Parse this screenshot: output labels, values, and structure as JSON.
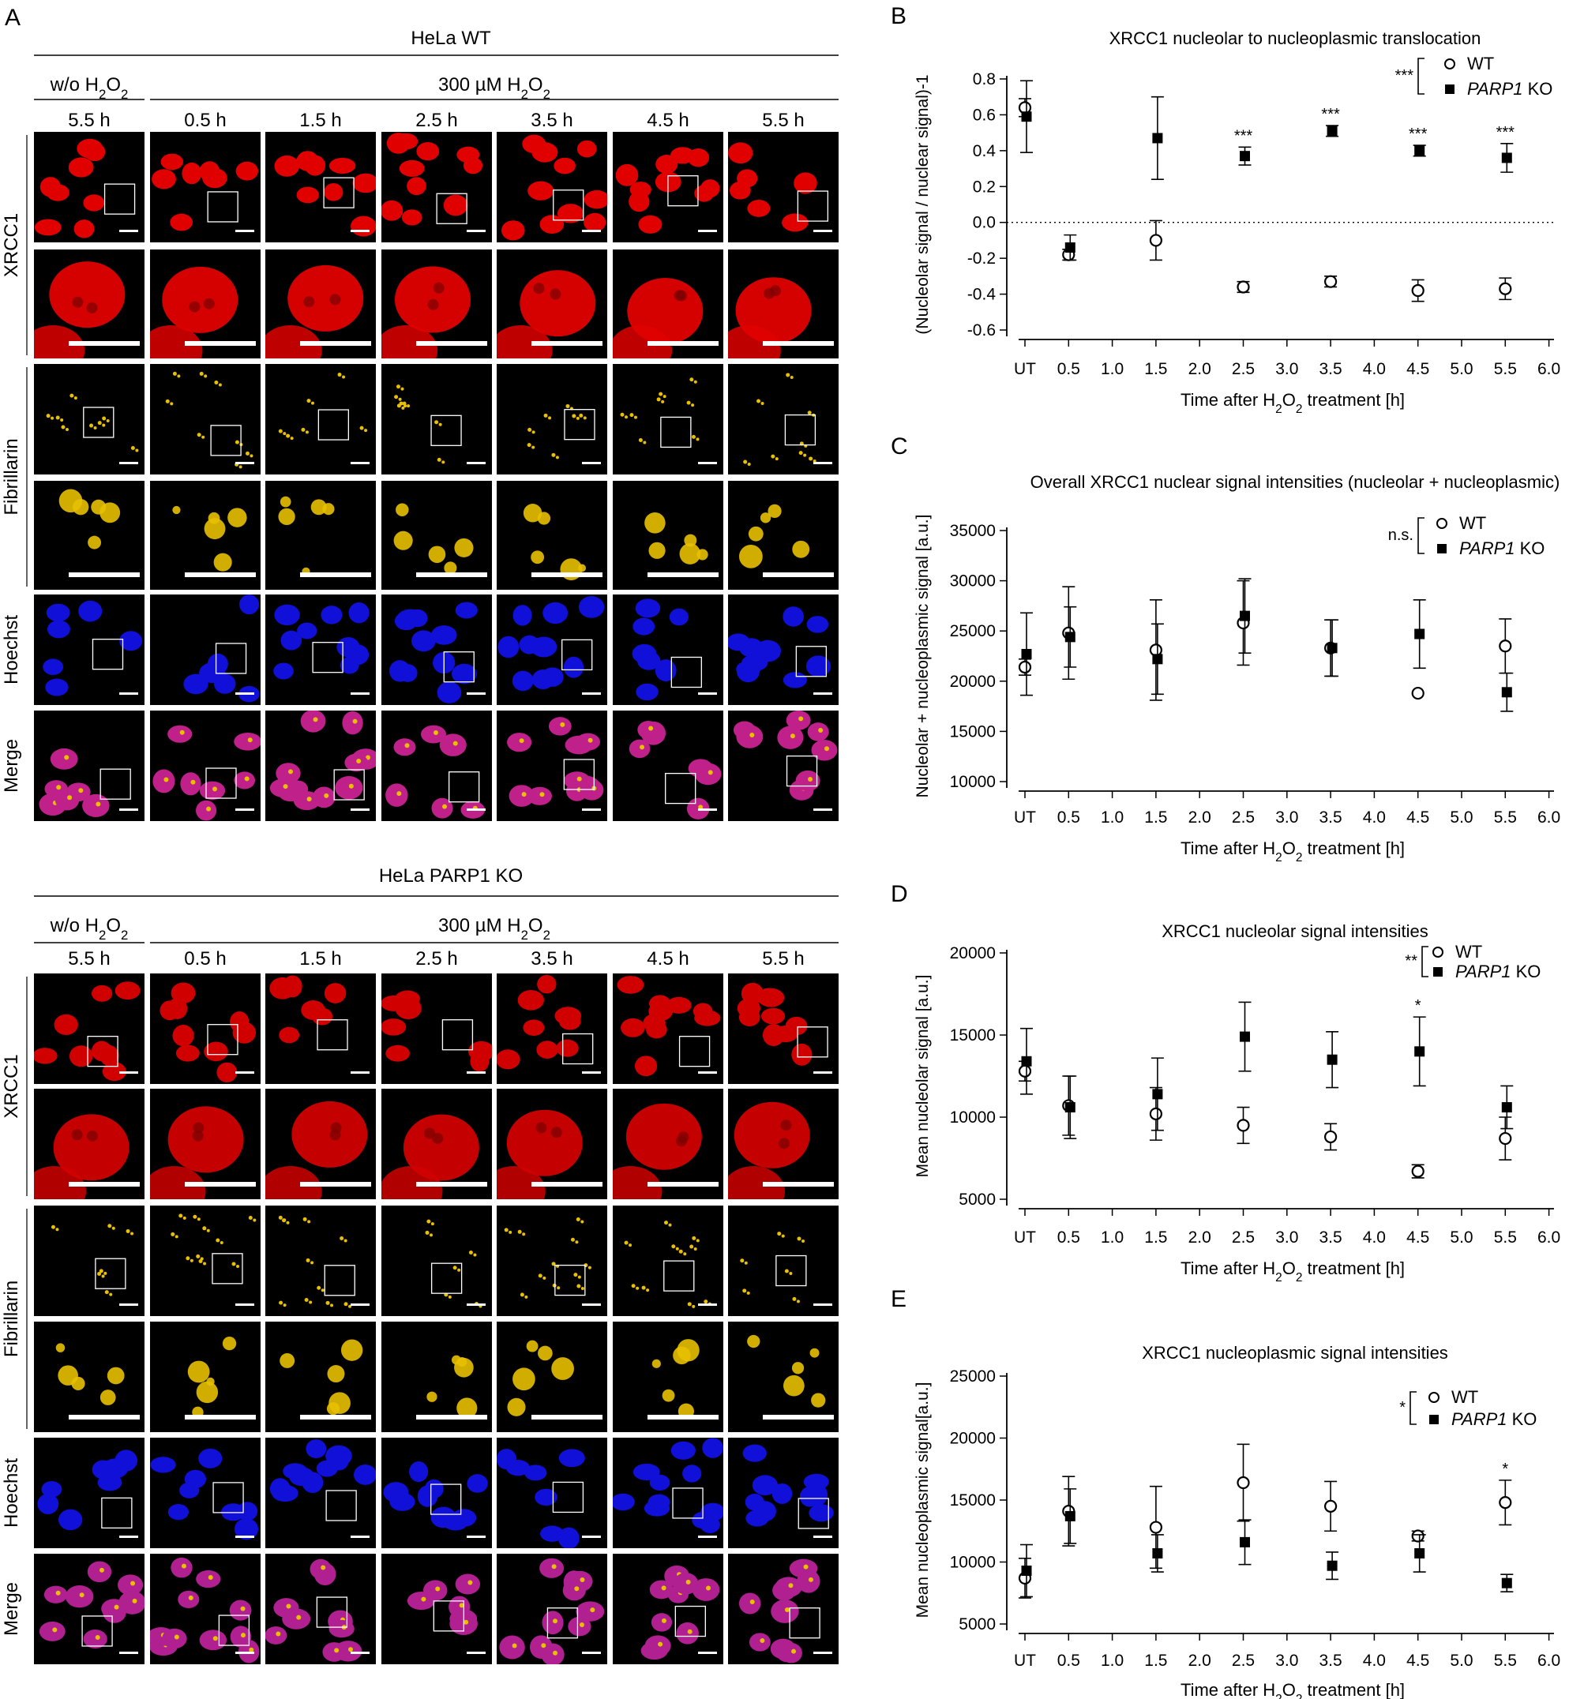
{
  "panel_letters": {
    "a": "A",
    "b": "B",
    "c": "C",
    "d": "D",
    "e": "E"
  },
  "left_panel": {
    "blocks": [
      {
        "cell_line": "HeLa WT",
        "untreated_label": "w/o H2O2",
        "treated_label": "300 µM H2O2",
        "times": [
          "5.5 h",
          "0.5 h",
          "1.5 h",
          "2.5 h",
          "3.5 h",
          "4.5 h",
          "5.5 h"
        ],
        "row_groups": [
          "XRCC1",
          "Fibrillarin",
          "Hoechst",
          "Merge"
        ],
        "colors": {
          "xrcc1": "#e00000",
          "fibrillarin": "#e8c000",
          "hoechst": "#1010d8",
          "merge": "#c0208a"
        }
      },
      {
        "cell_line": "HeLa PARP1 KO",
        "untreated_label": "w/o H2O2",
        "treated_label": "300 µM H2O2",
        "times": [
          "5.5 h",
          "0.5 h",
          "1.5 h",
          "2.5 h",
          "3.5 h",
          "4.5 h",
          "5.5 h"
        ],
        "row_groups": [
          "XRCC1",
          "Fibrillarin",
          "Hoechst",
          "Merge"
        ],
        "colors": {
          "xrcc1": "#d00000",
          "fibrillarin": "#e8c000",
          "hoechst": "#1010d8",
          "merge": "#b02090"
        }
      }
    ]
  },
  "chart_data": [
    {
      "id": "B",
      "type": "scatter",
      "title": "XRCC1 nucleolar to nucleoplasmic translocation",
      "xlabel": "Time after H2O2 treatment [h]",
      "ylabel": "(Nucleolar signal / nuclear signal)-1",
      "xticks": [
        "UT",
        "0.5",
        "1.0",
        "1.5",
        "2.0",
        "2.5",
        "3.0",
        "3.5",
        "4.0",
        "4.5",
        "5.0",
        "5.5",
        "6.0"
      ],
      "ylim": [
        -0.6,
        0.8
      ],
      "yticks": [
        -0.6,
        -0.4,
        -0.2,
        0.0,
        0.2,
        0.4,
        0.6,
        0.8
      ],
      "reference_line": 0.0,
      "legend_sig": "***",
      "series": [
        {
          "name": "WT",
          "marker": "open-circle",
          "x": [
            "UT",
            "0.5",
            "1.5",
            "2.5",
            "3.5",
            "4.5",
            "5.5"
          ],
          "values": [
            0.64,
            -0.18,
            -0.1,
            -0.36,
            -0.33,
            -0.38,
            -0.37
          ],
          "err": [
            0.05,
            0.03,
            0.11,
            0.03,
            0.03,
            0.06,
            0.06
          ]
        },
        {
          "name": "PARP1 KO",
          "marker": "filled-square",
          "x": [
            "UT",
            "0.5",
            "1.5",
            "2.5",
            "3.5",
            "4.5",
            "5.5"
          ],
          "values": [
            0.59,
            -0.14,
            0.47,
            0.37,
            0.51,
            0.4,
            0.36
          ],
          "err": [
            0.2,
            0.07,
            0.23,
            0.05,
            0.03,
            0.03,
            0.08
          ]
        }
      ],
      "annotations": [
        {
          "x": "2.5",
          "text": "***"
        },
        {
          "x": "3.5",
          "text": "***"
        },
        {
          "x": "4.5",
          "text": "***"
        },
        {
          "x": "5.5",
          "text": "***"
        }
      ]
    },
    {
      "id": "C",
      "type": "scatter",
      "title": "Overall XRCC1 nuclear signal intensities (nucleolar + nucleoplasmic)",
      "xlabel": "Time after H2O2 treatment [h]",
      "ylabel": "Nucleolar + nucleoplasmic signal [a.u.]",
      "xticks": [
        "UT",
        "0.5",
        "1.0",
        "1.5",
        "2.0",
        "2.5",
        "3.0",
        "3.5",
        "4.0",
        "4.5",
        "5.0",
        "5.5",
        "6.0"
      ],
      "ylim": [
        10000,
        35000
      ],
      "yticks": [
        10000,
        15000,
        20000,
        25000,
        30000,
        35000
      ],
      "legend_sig": "n.s.",
      "series": [
        {
          "name": "WT",
          "marker": "open-circle",
          "x": [
            "UT",
            "0.5",
            "1.5",
            "2.5",
            "3.5",
            "4.5",
            "5.5"
          ],
          "values": [
            21400,
            24800,
            23100,
            25800,
            23300,
            18800,
            23500
          ],
          "err": [
            800,
            4600,
            5000,
            4200,
            2800,
            0,
            2700
          ]
        },
        {
          "name": "PARP1 KO",
          "marker": "filled-square",
          "x": [
            "UT",
            "0.5",
            "1.5",
            "2.5",
            "3.5",
            "4.5",
            "5.5"
          ],
          "values": [
            22700,
            24400,
            22200,
            26500,
            23300,
            24700,
            18900
          ],
          "err": [
            4100,
            3000,
            3500,
            3700,
            2800,
            3400,
            1900
          ]
        }
      ],
      "annotations": []
    },
    {
      "id": "D",
      "type": "scatter",
      "title": "XRCC1 nucleolar signal intensities",
      "xlabel": "Time after H2O2 treatment [h]",
      "ylabel": "Mean nucleolar signal [a.u.]",
      "xticks": [
        "UT",
        "0.5",
        "1.0",
        "1.5",
        "2.0",
        "2.5",
        "3.0",
        "3.5",
        "4.0",
        "4.5",
        "5.0",
        "5.5",
        "6.0"
      ],
      "ylim": [
        5000,
        20000
      ],
      "yticks": [
        5000,
        10000,
        15000,
        20000
      ],
      "legend_sig": "**",
      "series": [
        {
          "name": "WT",
          "marker": "open-circle",
          "x": [
            "UT",
            "0.5",
            "1.5",
            "2.5",
            "3.5",
            "4.5",
            "5.5"
          ],
          "values": [
            12800,
            10700,
            10200,
            9500,
            8800,
            6700,
            8700
          ],
          "err": [
            600,
            1800,
            1600,
            1100,
            800,
            400,
            1300
          ]
        },
        {
          "name": "PARP1 KO",
          "marker": "filled-square",
          "x": [
            "UT",
            "0.5",
            "1.5",
            "2.5",
            "3.5",
            "4.5",
            "5.5"
          ],
          "values": [
            13400,
            10600,
            11400,
            14900,
            13500,
            14000,
            10600
          ],
          "err": [
            2000,
            1900,
            2200,
            2100,
            1700,
            2100,
            1300
          ]
        }
      ],
      "annotations": [
        {
          "x": "4.5",
          "text": "*"
        }
      ]
    },
    {
      "id": "E",
      "type": "scatter",
      "title": "XRCC1 nucleoplasmic signal intensities",
      "xlabel": "Time after H2O2 treatment [h]",
      "ylabel": "Mean nucleoplasmic signal[a.u.]",
      "xticks": [
        "UT",
        "0.5",
        "1.0",
        "1.5",
        "2.0",
        "2.5",
        "3.0",
        "3.5",
        "4.0",
        "4.5",
        "5.0",
        "5.5",
        "6.0"
      ],
      "ylim": [
        5000,
        25000
      ],
      "yticks": [
        5000,
        10000,
        15000,
        20000,
        25000
      ],
      "legend_sig": "*",
      "series": [
        {
          "name": "WT",
          "marker": "open-circle",
          "x": [
            "UT",
            "0.5",
            "1.5",
            "2.5",
            "3.5",
            "4.5",
            "5.5"
          ],
          "values": [
            8700,
            14100,
            12800,
            16400,
            14500,
            12100,
            14800
          ],
          "err": [
            1600,
            2800,
            3300,
            3100,
            2000,
            400,
            1800
          ]
        },
        {
          "name": "PARP1 KO",
          "marker": "filled-square",
          "x": [
            "UT",
            "0.5",
            "1.5",
            "2.5",
            "3.5",
            "4.5",
            "5.5"
          ],
          "values": [
            9300,
            13700,
            10700,
            11600,
            9700,
            10700,
            8300
          ],
          "err": [
            2100,
            2200,
            1500,
            1800,
            1100,
            1500,
            700
          ]
        }
      ],
      "annotations": [
        {
          "x": "5.5",
          "text": "*"
        }
      ]
    }
  ]
}
